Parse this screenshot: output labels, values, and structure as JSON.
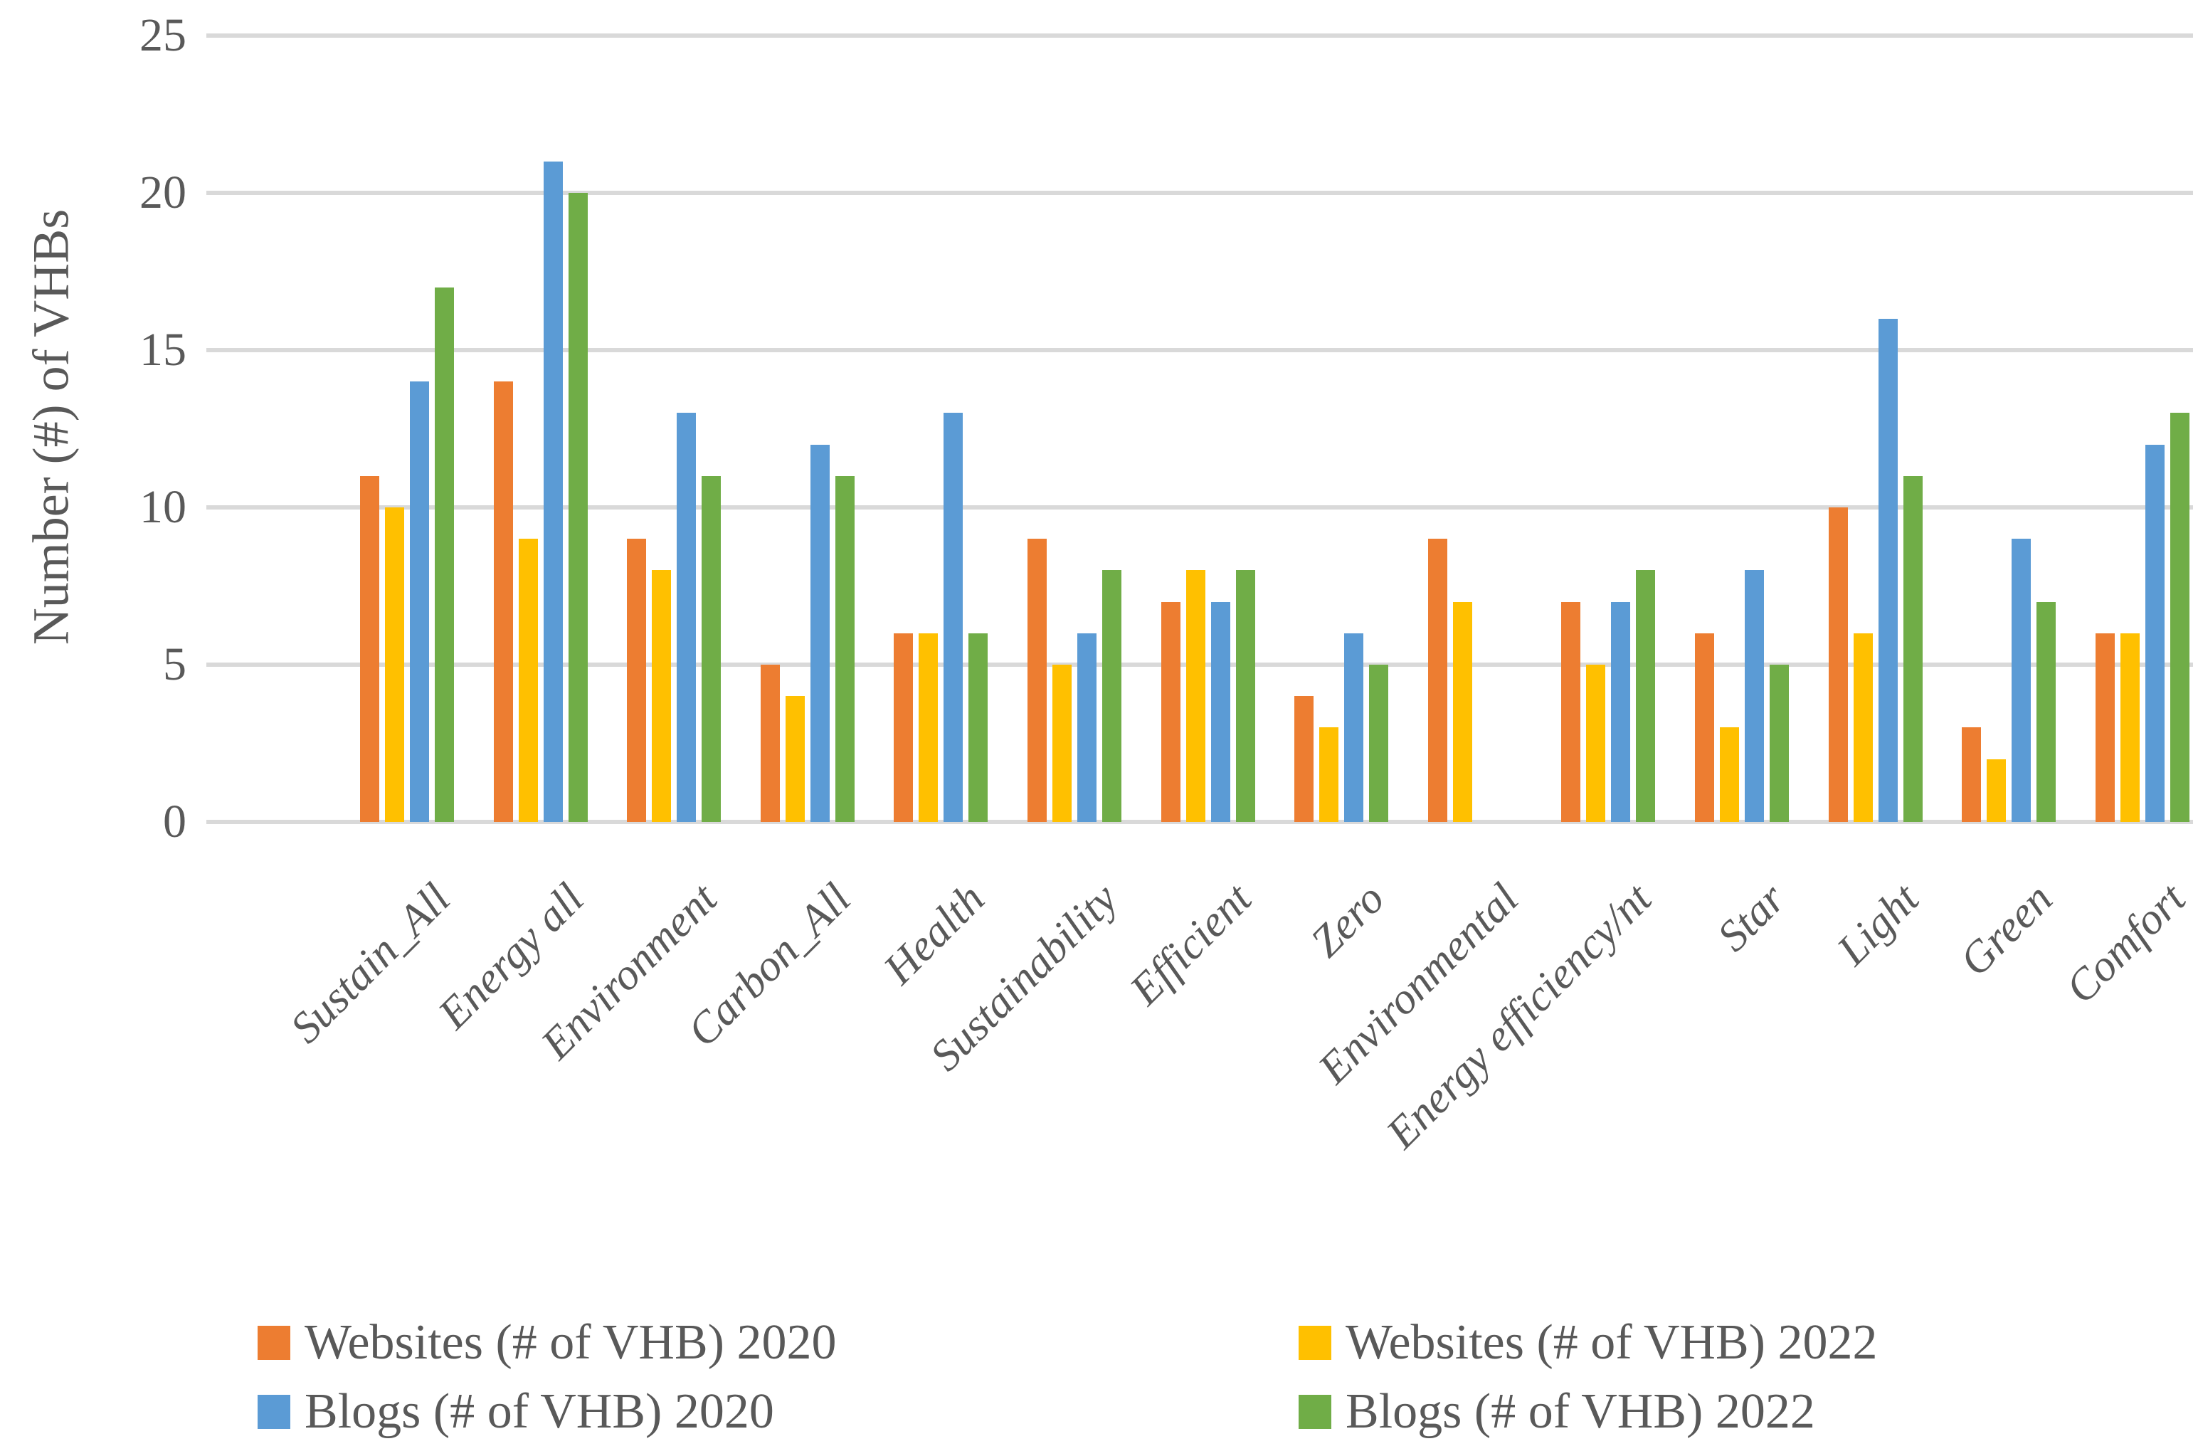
{
  "chart_data": {
    "type": "bar",
    "title": "",
    "ylabel": "Number (#) of VHBs",
    "xlabel": "",
    "ylim": [
      0,
      25
    ],
    "yticks": [
      0,
      5,
      10,
      15,
      20,
      25
    ],
    "grid": true,
    "legend_position": "bottom",
    "categories": [
      "Sustain_All",
      "Energy all",
      "Environment",
      "Carbon_All",
      "Health",
      "Sustainability",
      "Efficient",
      "Zero",
      "Environmental",
      "Energy efficiency/nt",
      "Star",
      "Light",
      "Green",
      "Comfort"
    ],
    "series": [
      {
        "name": "Websites  (# of VHB) 2020",
        "color": "#ED7D31",
        "values": [
          11,
          14,
          9,
          5,
          6,
          9,
          7,
          4,
          9,
          7,
          6,
          10,
          3,
          6
        ]
      },
      {
        "name": "Websites  (# of VHB) 2022",
        "color": "#FFC000",
        "values": [
          10,
          9,
          8,
          4,
          6,
          5,
          8,
          3,
          7,
          5,
          3,
          6,
          2,
          6
        ]
      },
      {
        "name": "Blogs (# of VHB) 2020",
        "color": "#5B9BD5",
        "values": [
          14,
          21,
          13,
          12,
          13,
          6,
          7,
          6,
          0,
          7,
          8,
          16,
          9,
          12
        ]
      },
      {
        "name": "Blogs (# of VHB) 2022",
        "color": "#70AD47",
        "values": [
          17,
          20,
          11,
          11,
          6,
          8,
          8,
          5,
          0,
          8,
          5,
          11,
          7,
          13
        ]
      }
    ]
  },
  "colors": {
    "gridline": "#D9D9D9",
    "text": "#595959",
    "background": "#FFFFFF"
  }
}
